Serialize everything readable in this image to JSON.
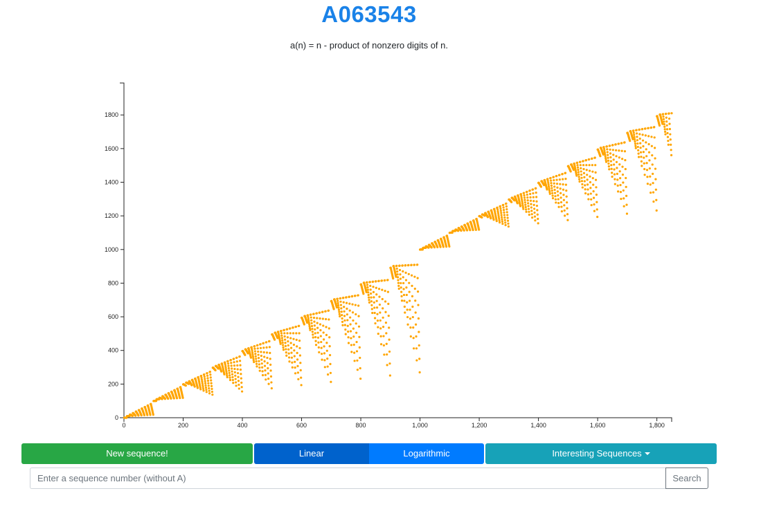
{
  "header": {
    "title": "A063543",
    "subtitle": "a(n) = n - product of nonzero digits of n."
  },
  "colors": {
    "point": "#ffa500",
    "title": "#1a82e8",
    "new_button": "#28a745",
    "linear_button": "#0062cc",
    "log_button": "#007bff",
    "interesting_button": "#17a2b8"
  },
  "controls": {
    "new_sequence_label": "New sequence!",
    "linear_label": "Linear",
    "logarithmic_label": "Logarithmic",
    "interesting_label": "Interesting Sequences",
    "search_placeholder": "Enter a sequence number (without A)",
    "search_label": "Search"
  },
  "chart_data": {
    "type": "scatter",
    "title": "",
    "xlabel": "",
    "ylabel": "",
    "scale": "linear",
    "grid": false,
    "legend": "none",
    "xlim": [
      0,
      1850
    ],
    "ylim": [
      0,
      1990
    ],
    "x_ticks": [
      0,
      200,
      400,
      600,
      800,
      1000,
      1200,
      1400,
      1600,
      1800
    ],
    "x_tick_labels": [
      "0",
      "200",
      "400",
      "600",
      "800",
      "1,000",
      "1,200",
      "1,400",
      "1,600",
      "1,800"
    ],
    "y_ticks": [
      0,
      200,
      400,
      600,
      800,
      1000,
      1200,
      1400,
      1600,
      1800
    ],
    "y_tick_labels": [
      "0",
      "200",
      "400",
      "600",
      "800",
      "1000",
      "1200",
      "1400",
      "1600",
      "1800"
    ],
    "series": [
      {
        "formula": "a(n) = n - product of nonzero digits of n",
        "n_min": 1,
        "n_max": 1850
      }
    ]
  }
}
